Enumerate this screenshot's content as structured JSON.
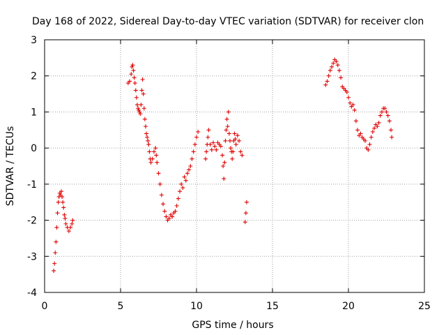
{
  "chart_data": {
    "type": "scatter",
    "title": "Day 168 of 2022, Sidereal Day-to-day VTEC variation (SDTVAR) for receiver clon",
    "xlabel": "GPS time / hours",
    "ylabel": "SDTVAR / TECUs",
    "xlim": [
      0,
      25
    ],
    "ylim": [
      -4,
      3
    ],
    "xticks": [
      0,
      5,
      10,
      15,
      20,
      25
    ],
    "yticks": [
      -4,
      -3,
      -2,
      -1,
      0,
      1,
      2,
      3
    ],
    "xtick_labels": [
      "0",
      "5",
      "10",
      "15",
      "20",
      "25"
    ],
    "ytick_labels": [
      "-4",
      "-3",
      "-2",
      "-1",
      "0",
      "1",
      "2",
      "3"
    ],
    "grid": true,
    "marker": "+",
    "color": "#e00000",
    "series": [
      {
        "name": "SDTVAR",
        "segments": [
          [
            [
              0.6,
              -3.4
            ],
            [
              0.65,
              -3.2
            ],
            [
              0.7,
              -2.9
            ],
            [
              0.75,
              -2.6
            ],
            [
              0.8,
              -2.2
            ],
            [
              0.85,
              -1.8
            ],
            [
              0.9,
              -1.5
            ],
            [
              0.95,
              -1.35
            ],
            [
              1.0,
              -1.25
            ],
            [
              1.05,
              -1.3
            ],
            [
              1.1,
              -1.2
            ],
            [
              1.15,
              -1.35
            ],
            [
              1.2,
              -1.5
            ],
            [
              1.25,
              -1.65
            ],
            [
              1.3,
              -1.85
            ],
            [
              1.35,
              -1.95
            ],
            [
              1.4,
              -2.1
            ],
            [
              1.5,
              -2.2
            ],
            [
              1.6,
              -2.3
            ],
            [
              1.7,
              -2.2
            ],
            [
              1.8,
              -2.1
            ],
            [
              1.85,
              -2.0
            ]
          ],
          [
            [
              5.5,
              1.8
            ],
            [
              5.6,
              1.85
            ],
            [
              5.7,
              2.05
            ],
            [
              5.75,
              2.25
            ],
            [
              5.8,
              2.3
            ],
            [
              5.85,
              2.15
            ],
            [
              5.9,
              1.95
            ],
            [
              5.95,
              1.8
            ],
            [
              6.0,
              1.6
            ],
            [
              6.05,
              1.4
            ],
            [
              6.1,
              1.2
            ],
            [
              6.15,
              1.1
            ],
            [
              6.2,
              1.05
            ],
            [
              6.25,
              1.0
            ],
            [
              6.3,
              0.95
            ],
            [
              6.35,
              1.2
            ],
            [
              6.4,
              1.6
            ],
            [
              6.45,
              1.9
            ],
            [
              6.5,
              1.5
            ],
            [
              6.55,
              1.1
            ],
            [
              6.6,
              0.8
            ],
            [
              6.65,
              0.6
            ],
            [
              6.7,
              0.4
            ],
            [
              6.75,
              0.3
            ],
            [
              6.8,
              0.2
            ],
            [
              6.85,
              0.1
            ],
            [
              6.9,
              -0.1
            ],
            [
              6.95,
              -0.3
            ],
            [
              7.0,
              -0.4
            ],
            [
              7.1,
              -0.3
            ],
            [
              7.2,
              -0.1
            ],
            [
              7.3,
              0.0
            ],
            [
              7.35,
              -0.2
            ],
            [
              7.4,
              -0.4
            ],
            [
              7.5,
              -0.7
            ],
            [
              7.6,
              -1.0
            ],
            [
              7.7,
              -1.3
            ],
            [
              7.8,
              -1.55
            ],
            [
              7.9,
              -1.75
            ],
            [
              8.0,
              -1.9
            ],
            [
              8.1,
              -2.0
            ],
            [
              8.2,
              -1.95
            ],
            [
              8.3,
              -1.85
            ],
            [
              8.4,
              -1.9
            ],
            [
              8.5,
              -1.8
            ],
            [
              8.6,
              -1.75
            ],
            [
              8.7,
              -1.6
            ],
            [
              8.8,
              -1.4
            ],
            [
              8.9,
              -1.2
            ],
            [
              9.0,
              -1.0
            ],
            [
              9.1,
              -1.1
            ],
            [
              9.2,
              -0.8
            ],
            [
              9.3,
              -0.9
            ],
            [
              9.4,
              -0.7
            ],
            [
              9.5,
              -0.6
            ],
            [
              9.6,
              -0.5
            ],
            [
              9.7,
              -0.3
            ],
            [
              9.8,
              -0.1
            ],
            [
              9.9,
              0.1
            ],
            [
              10.0,
              0.3
            ],
            [
              10.1,
              0.45
            ]
          ],
          [
            [
              10.6,
              -0.3
            ],
            [
              10.65,
              -0.1
            ],
            [
              10.7,
              0.1
            ],
            [
              10.75,
              0.3
            ],
            [
              10.8,
              0.5
            ],
            [
              10.9,
              0.1
            ],
            [
              11.0,
              -0.05
            ],
            [
              11.1,
              0.15
            ],
            [
              11.2,
              0.05
            ],
            [
              11.3,
              -0.05
            ],
            [
              11.4,
              0.15
            ],
            [
              11.5,
              0.1
            ],
            [
              11.6,
              0.05
            ],
            [
              11.7,
              -0.2
            ],
            [
              11.75,
              -0.5
            ],
            [
              11.8,
              -0.85
            ],
            [
              11.85,
              -0.4
            ],
            [
              11.9,
              0.2
            ],
            [
              11.95,
              0.5
            ],
            [
              12.0,
              0.8
            ],
            [
              12.05,
              0.6
            ],
            [
              12.1,
              1.0
            ],
            [
              12.15,
              0.4
            ],
            [
              12.2,
              0.2
            ],
            [
              12.25,
              0.0
            ],
            [
              12.3,
              -0.1
            ],
            [
              12.35,
              -0.3
            ],
            [
              12.4,
              -0.1
            ],
            [
              12.45,
              0.2
            ],
            [
              12.5,
              0.4
            ],
            [
              12.55,
              0.25
            ],
            [
              12.6,
              0.1
            ],
            [
              12.7,
              0.35
            ],
            [
              12.8,
              0.2
            ],
            [
              12.9,
              -0.1
            ],
            [
              13.0,
              -0.2
            ]
          ],
          [
            [
              13.2,
              -2.05
            ],
            [
              13.25,
              -1.8
            ],
            [
              13.3,
              -1.5
            ]
          ],
          [
            [
              18.5,
              1.75
            ],
            [
              18.6,
              1.85
            ],
            [
              18.7,
              2.0
            ],
            [
              18.8,
              2.15
            ],
            [
              18.9,
              2.25
            ],
            [
              19.0,
              2.35
            ],
            [
              19.1,
              2.45
            ],
            [
              19.2,
              2.4
            ],
            [
              19.3,
              2.3
            ],
            [
              19.4,
              2.15
            ],
            [
              19.5,
              1.95
            ],
            [
              19.6,
              1.7
            ],
            [
              19.7,
              1.65
            ],
            [
              19.8,
              1.6
            ],
            [
              19.9,
              1.55
            ],
            [
              20.0,
              1.4
            ],
            [
              20.1,
              1.25
            ],
            [
              20.2,
              1.15
            ],
            [
              20.3,
              1.2
            ],
            [
              20.4,
              1.05
            ],
            [
              20.5,
              0.75
            ],
            [
              20.6,
              0.5
            ],
            [
              20.7,
              0.35
            ],
            [
              20.8,
              0.4
            ],
            [
              20.9,
              0.3
            ],
            [
              21.0,
              0.25
            ],
            [
              21.1,
              0.2
            ],
            [
              21.2,
              0.0
            ],
            [
              21.3,
              -0.05
            ],
            [
              21.4,
              0.1
            ],
            [
              21.5,
              0.3
            ],
            [
              21.6,
              0.45
            ],
            [
              21.7,
              0.55
            ],
            [
              21.8,
              0.65
            ],
            [
              21.9,
              0.6
            ],
            [
              22.0,
              0.7
            ],
            [
              22.1,
              0.9
            ],
            [
              22.2,
              1.0
            ],
            [
              22.3,
              1.1
            ],
            [
              22.4,
              1.1
            ],
            [
              22.5,
              1.0
            ],
            [
              22.6,
              0.9
            ],
            [
              22.7,
              0.75
            ],
            [
              22.8,
              0.5
            ],
            [
              22.85,
              0.3
            ]
          ]
        ]
      }
    ]
  }
}
